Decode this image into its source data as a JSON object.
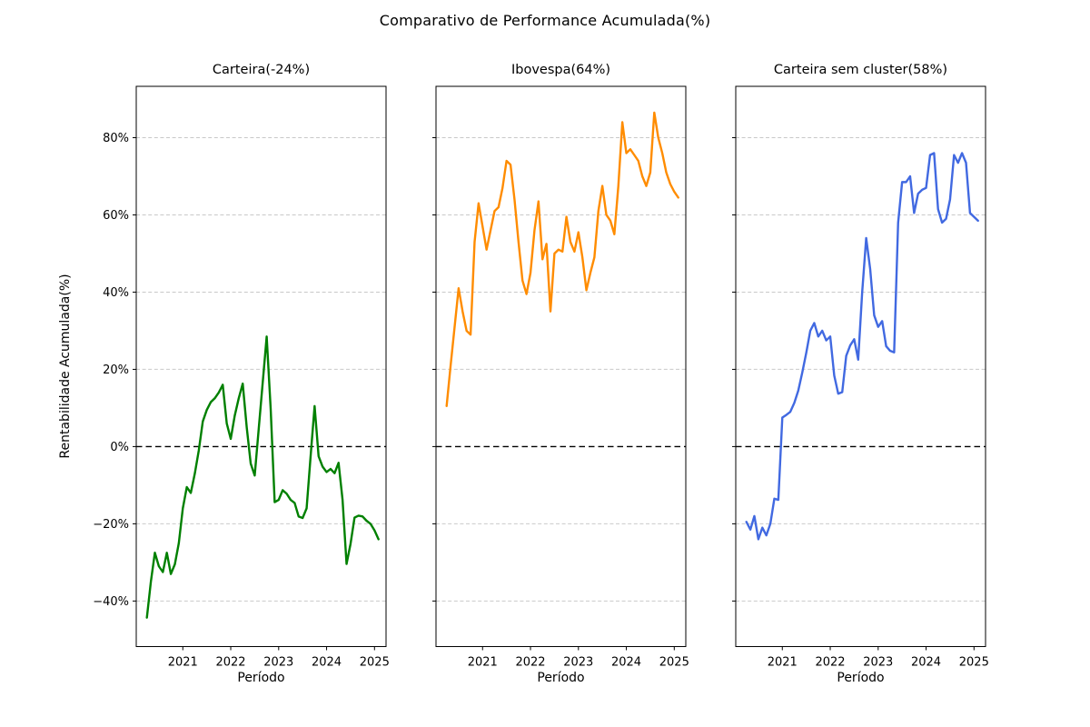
{
  "figure": {
    "title": "Comparativo de Performance Acumulada(%)",
    "background_color": "#ffffff",
    "text_color": "#000000"
  },
  "chart_data": {
    "type": "line",
    "suptitle": "Comparativo de Performance Acumulada(%)",
    "xlabel": "Período",
    "ylabel": "Rentabilidade Acumulada(%)",
    "x_start": "2020-04",
    "x_interval": "monthly",
    "n_points": 59,
    "x_ticks": {
      "labels": [
        "2021",
        "2022",
        "2023",
        "2024",
        "2025"
      ],
      "month_indices": [
        9,
        21,
        33,
        45,
        57
      ]
    },
    "y_ticks": {
      "labels": [
        "80%",
        "60%",
        "40%",
        "20%",
        "0%",
        "−20%",
        "−40%"
      ],
      "values": [
        80,
        60,
        40,
        20,
        0,
        -20,
        -40
      ]
    },
    "ylim": [
      -51.8,
      93.3
    ],
    "grid": "horizontal dashed",
    "grid_color": "#c9c9c9",
    "zero_line": {
      "value": 0,
      "style": "dashed",
      "color": "#000000"
    },
    "legend": "none",
    "subplots": [
      {
        "title": "Carteira(-24%)",
        "final_value_pct": -24,
        "color": "#008000",
        "values": [
          -44.3,
          -35,
          -27.5,
          -31,
          -32.5,
          -27.5,
          -33,
          -30.5,
          -25,
          -16,
          -10.5,
          -12,
          -7,
          -1,
          6.5,
          9.5,
          11.5,
          12.5,
          14,
          16,
          6,
          2,
          8,
          12.5,
          16.3,
          5,
          -4.4,
          -7.5,
          4.5,
          16.5,
          28.5,
          9.8,
          -14.4,
          -13.8,
          -11.3,
          -12.2,
          -13.8,
          -14.6,
          -18.1,
          -18.5,
          -16,
          -2.5,
          10.5,
          -2.5,
          -5.2,
          -6.6,
          -5.8,
          -6.9,
          -4.2,
          -13.8,
          -30.4,
          -25.2,
          -18.4,
          -17.9,
          -18.1,
          -19.2,
          -20,
          -21.7,
          -24
        ]
      },
      {
        "title": "Ibovespa(64%)",
        "final_value_pct": 64,
        "color": "#ff8c00",
        "values": [
          10.5,
          21,
          31,
          41,
          35,
          30,
          29,
          53,
          63,
          57,
          51,
          56,
          61,
          62,
          67,
          74,
          73,
          64,
          53,
          43,
          39.5,
          45,
          56,
          63.5,
          48.5,
          52.5,
          35,
          50,
          51,
          50.5,
          59.5,
          53,
          50.5,
          55.5,
          49,
          40.5,
          45,
          49,
          61,
          67.5,
          60,
          58.5,
          55,
          67.5,
          84,
          76,
          77,
          75.5,
          74,
          70,
          67.5,
          71,
          86.5,
          80,
          76,
          71,
          68,
          66,
          64.5
        ]
      },
      {
        "title": "Carteira sem cluster(58%)",
        "final_value_pct": 58,
        "color": "#4169e1",
        "values": [
          -19.5,
          -21.5,
          -18,
          -24,
          -21,
          -23,
          -20,
          -13.5,
          -13.8,
          7.5,
          8.2,
          9,
          11.3,
          14.5,
          19.2,
          24.3,
          30,
          32,
          28.5,
          30,
          27.5,
          28.5,
          18.4,
          13.7,
          14.1,
          23.5,
          26.2,
          27.8,
          22.5,
          40,
          54,
          46,
          34,
          31,
          32.5,
          26,
          24.8,
          24.4,
          58,
          68.5,
          68.5,
          70,
          60.5,
          65.5,
          66.5,
          67,
          75.5,
          76,
          61.5,
          58,
          59,
          64,
          75.5,
          73.5,
          76,
          73.5,
          60.5,
          59.5,
          58.5
        ]
      }
    ]
  }
}
